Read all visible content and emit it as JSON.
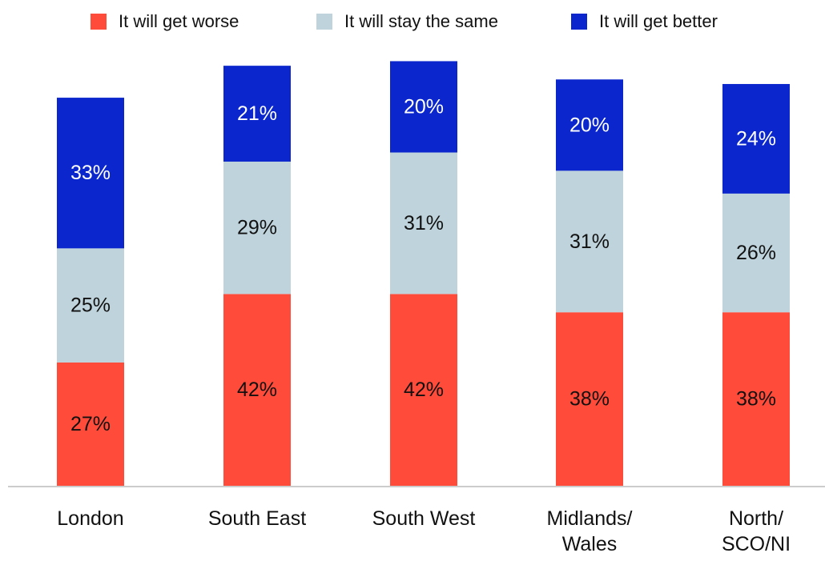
{
  "colors": {
    "worse": "#FF4B3A",
    "same": "#BED3DB",
    "better": "#0A26CC",
    "axis": "#cccccc",
    "text": "#111111",
    "label_on_dark": "#ffffff"
  },
  "legend": [
    {
      "label": "It will get worse",
      "color": "#FF4B3A"
    },
    {
      "label": "It will stay the same",
      "color": "#BED3DB"
    },
    {
      "label": "It will get better",
      "color": "#0A26CC"
    }
  ],
  "chart_data": {
    "type": "bar",
    "stacked": true,
    "categories": [
      [
        "London"
      ],
      [
        "South East"
      ],
      [
        "South West"
      ],
      [
        "Midlands/",
        "Wales"
      ],
      [
        "North/",
        "SCO/NI"
      ]
    ],
    "series": [
      {
        "name": "It will get worse",
        "values": [
          27,
          42,
          42,
          38,
          38
        ],
        "labels": [
          "27%",
          "42%",
          "42%",
          "38%",
          "38%"
        ]
      },
      {
        "name": "It will stay the same",
        "values": [
          25,
          29,
          31,
          31,
          26
        ],
        "labels": [
          "25%",
          "29%",
          "31%",
          "31%",
          "26%"
        ]
      },
      {
        "name": "It will get better",
        "values": [
          33,
          21,
          20,
          20,
          24
        ],
        "labels": [
          "33%",
          "21%",
          "20%",
          "20%",
          "24%"
        ]
      }
    ],
    "title": "",
    "xlabel": "",
    "ylabel": "",
    "ylim": [
      0,
      95
    ],
    "grid": false,
    "legend_position": "top"
  }
}
